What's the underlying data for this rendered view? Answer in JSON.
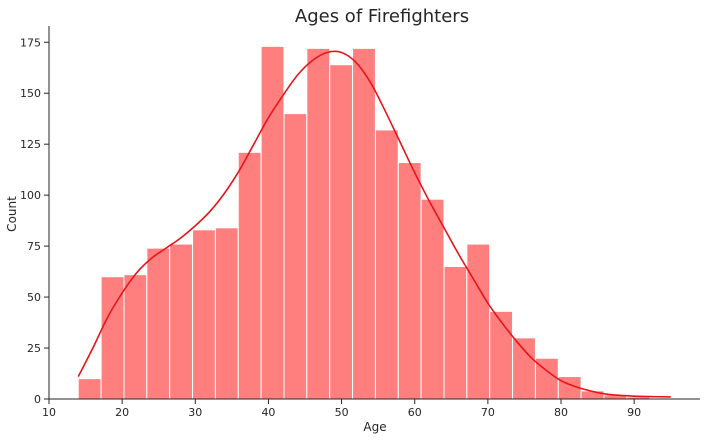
{
  "chart_data": {
    "type": "histogram",
    "title": "Ages of Firefighters",
    "xlabel": "Age",
    "ylabel": "Count",
    "xlim": [
      10,
      99
    ],
    "ylim": [
      0,
      182
    ],
    "xticks": [
      10,
      20,
      30,
      40,
      50,
      60,
      70,
      80,
      90
    ],
    "yticks": [
      0,
      25,
      50,
      75,
      100,
      125,
      150,
      175
    ],
    "bin_start": 14,
    "bin_width": 3.125,
    "counts": [
      10,
      60,
      61,
      74,
      76,
      83,
      84,
      121,
      173,
      140,
      172,
      164,
      172,
      132,
      116,
      98,
      65,
      76,
      43,
      30,
      20,
      11,
      4,
      2,
      1
    ],
    "bar_color": "#ff7f7f",
    "bar_edge_color": "#ffffff",
    "kde_color": "#e8141a",
    "kde": {
      "x": [
        14,
        16,
        18,
        20,
        22,
        24,
        26,
        28,
        30,
        32,
        34,
        36,
        38,
        40,
        42,
        44,
        46,
        48,
        50,
        52,
        54,
        56,
        58,
        60,
        62,
        64,
        66,
        68,
        70,
        72,
        74,
        76,
        78,
        80,
        82,
        84,
        86,
        88,
        90,
        92,
        95
      ],
      "y": [
        11,
        25,
        40,
        52,
        62,
        69,
        74,
        79,
        85,
        92,
        101,
        112,
        125,
        138,
        149,
        159,
        166,
        170,
        170,
        165,
        155,
        141,
        126,
        111,
        97,
        84,
        71,
        59,
        47,
        37,
        28,
        20,
        14,
        9,
        6,
        4,
        2.5,
        1.8,
        1.4,
        1.2,
        1
      ]
    },
    "grid": false,
    "legend": "none"
  }
}
